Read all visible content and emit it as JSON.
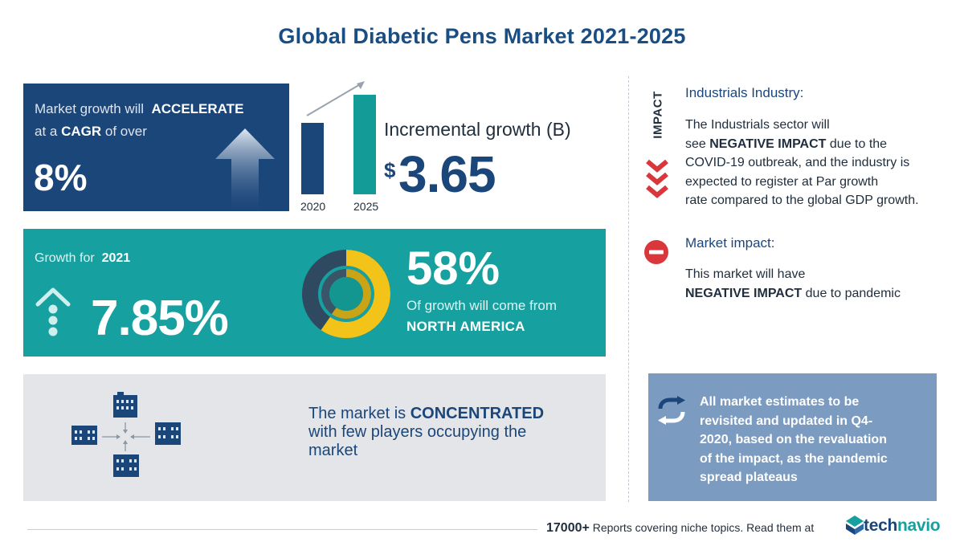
{
  "title": "Global Diabetic Pens Market 2021-2025",
  "cagr": {
    "line1_prefix": "Market growth will",
    "line1_emph": "ACCELERATE",
    "line2_prefix": "at a",
    "line2_emph": "CAGR",
    "line2_suffix": "of over",
    "value": "8%"
  },
  "incremental": {
    "label": "Incremental growth (B)",
    "currency": "$",
    "value": "3.65",
    "year_start": "2020",
    "year_end": "2025"
  },
  "growth_2021": {
    "label_prefix": "Growth for",
    "label_year": "2021",
    "value": "7.85%"
  },
  "regional": {
    "share": "58%",
    "text": "Of growth will come from",
    "region": "NORTH AMERICA"
  },
  "concentration": {
    "prefix": "The market is",
    "emph": "CONCENTRATED",
    "rest_line2": "with few players occupying the",
    "rest_line3": "market"
  },
  "impact": {
    "vertical_label": "IMPACT",
    "industry_title": "Industrials Industry:",
    "industry_l1": "The Industrials sector will",
    "industry_l2_pre": "see",
    "industry_l2_emph": "NEGATIVE IMPACT",
    "industry_l2_post": "due to the",
    "industry_l3": "COVID-19 outbreak, and the industry is",
    "industry_l4": "expected to register at Par growth",
    "industry_l5": "rate compared to the global GDP growth.",
    "market_title": "Market impact:",
    "market_l1": "This market will have",
    "market_l2_emph": "NEGATIVE IMPACT",
    "market_l2_post": "due to pandemic"
  },
  "note": {
    "l1": "All market estimates to be",
    "l2": "revisited and updated in Q4-",
    "l3": "2020, based on the revaluation",
    "l4": "of the impact, as the pandemic",
    "l5": "spread plateaus"
  },
  "footer": {
    "count": "17000+",
    "text": "Reports covering niche topics. Read them at",
    "logo_main": "tech",
    "logo_accent": "navio"
  },
  "colors": {
    "navy": "#1b4679",
    "teal": "#17a0a0",
    "gold": "#f2c318",
    "red": "#d9373b",
    "note_blue": "#7b9bc0",
    "gray_panel": "#e4e5e8"
  }
}
